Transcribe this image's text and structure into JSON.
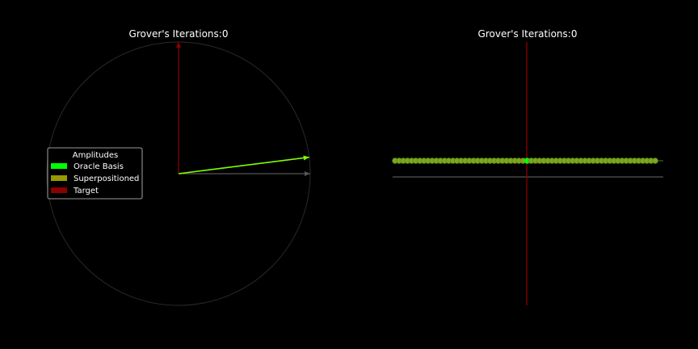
{
  "chart_data": [
    {
      "type": "vector",
      "title": "Grover's Iterations:0",
      "grid": false,
      "legend": {
        "title": "Amplitudes",
        "placement": "center-left",
        "entries": [
          {
            "label": "Oracle Basis",
            "color": "#00ff00"
          },
          {
            "label": "Superpositioned",
            "color": "#999900"
          },
          {
            "label": "Target",
            "color": "#8b0000"
          }
        ]
      },
      "vectors": [
        {
          "name": "Target",
          "x": 0.0,
          "y": 1.0,
          "color": "#8b0000"
        },
        {
          "name": "Oracle Basis",
          "x": 1.0,
          "y": 0.0,
          "color": "#555555"
        },
        {
          "name": "Superpositioned",
          "x": 0.9922,
          "y": 0.125,
          "color": "#7fff00"
        }
      ],
      "unit_circle": true
    },
    {
      "type": "scatter",
      "title": "Grover's Iterations:0",
      "grid": false,
      "x_range": [
        -32,
        32
      ],
      "n_states": 64,
      "amplitudes": [
        0.125,
        0.125,
        0.125,
        0.125,
        0.125,
        0.125,
        0.125,
        0.125,
        0.125,
        0.125,
        0.125,
        0.125,
        0.125,
        0.125,
        0.125,
        0.125,
        0.125,
        0.125,
        0.125,
        0.125,
        0.125,
        0.125,
        0.125,
        0.125,
        0.125,
        0.125,
        0.125,
        0.125,
        0.125,
        0.125,
        0.125,
        0.125,
        0.125,
        0.125,
        0.125,
        0.125,
        0.125,
        0.125,
        0.125,
        0.125,
        0.125,
        0.125,
        0.125,
        0.125,
        0.125,
        0.125,
        0.125,
        0.125,
        0.125,
        0.125,
        0.125,
        0.125,
        0.125,
        0.125,
        0.125,
        0.125,
        0.125,
        0.125,
        0.125,
        0.125,
        0.125,
        0.125,
        0.125,
        0.125
      ],
      "mean_amplitude": 0.125,
      "marker_color": "#7fa81e",
      "target_color": "#00ff00",
      "axis_color": "#8b0000",
      "baseline_color": "#555555"
    }
  ]
}
